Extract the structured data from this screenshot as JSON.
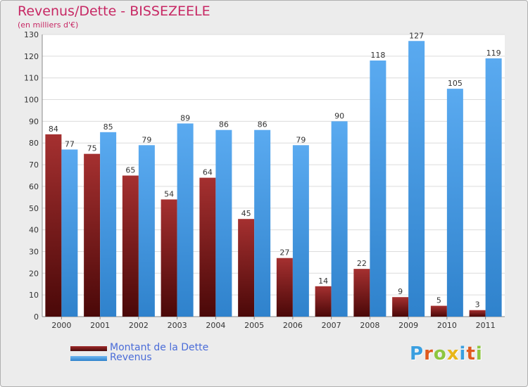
{
  "title": "Revenus/Dette - BISSEZEELE",
  "subtitle": "(en milliers d'€)",
  "logo": {
    "text": "Proxiti",
    "colors": [
      "#3a9fe0",
      "#e05a1f",
      "#8dc63f",
      "#e8b618",
      "#3a9fe0",
      "#e05a1f",
      "#8dc63f"
    ]
  },
  "colors": {
    "dette": "#7a1f1f",
    "revenus": "#4a9ee6",
    "label_text": "#4a6cd8",
    "title_text": "#c72864"
  },
  "chart_data": {
    "type": "bar",
    "title": "Revenus/Dette - BISSEZEELE",
    "subtitle": "(en milliers d'€)",
    "categories": [
      "2000",
      "2001",
      "2002",
      "2003",
      "2004",
      "2005",
      "2006",
      "2007",
      "2008",
      "2009",
      "2010",
      "2011"
    ],
    "series": [
      {
        "name": "Montant de la Dette",
        "values": [
          84,
          75,
          65,
          54,
          64,
          45,
          27,
          14,
          22,
          9,
          5,
          3
        ]
      },
      {
        "name": "Revenus",
        "values": [
          77,
          85,
          79,
          89,
          86,
          86,
          79,
          90,
          118,
          127,
          105,
          119
        ]
      }
    ],
    "ylim": [
      0,
      130
    ],
    "yticks": [
      0,
      10,
      20,
      30,
      40,
      50,
      60,
      70,
      80,
      90,
      100,
      110,
      120,
      130
    ],
    "grid": true,
    "legend_position": "bottom-left"
  },
  "legend": [
    {
      "label": "Montant de la Dette"
    },
    {
      "label": "Revenus"
    }
  ]
}
